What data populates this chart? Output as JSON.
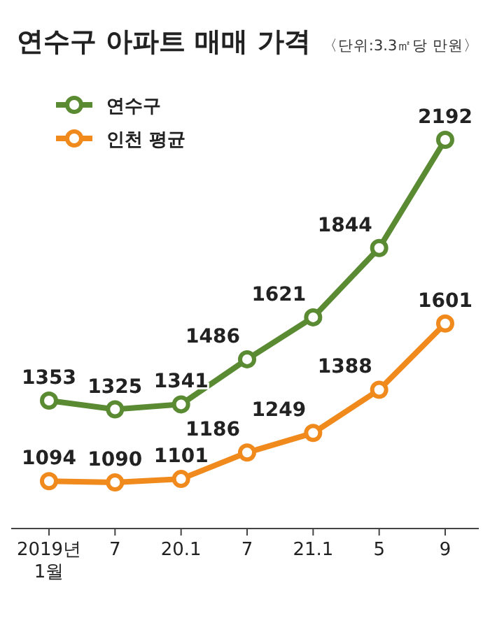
{
  "chart_data": {
    "type": "line",
    "title": "연수구 아파트 매매 가격",
    "subtitle": "〈단위:3.3㎡당 만원〉",
    "categories": [
      "2019년\n1월",
      "7",
      "20.1",
      "7",
      "21.1",
      "5",
      "9"
    ],
    "series": [
      {
        "name": "연수구",
        "color": "#5a8a32",
        "values": [
          1353,
          1325,
          1341,
          1486,
          1621,
          1844,
          2192
        ]
      },
      {
        "name": "인천 평균",
        "color": "#f08a1c",
        "values": [
          1094,
          1090,
          1101,
          1186,
          1249,
          1388,
          1601
        ]
      }
    ],
    "data_labels": true,
    "legend": "top left",
    "marker": "circle",
    "line_style": "solid"
  }
}
